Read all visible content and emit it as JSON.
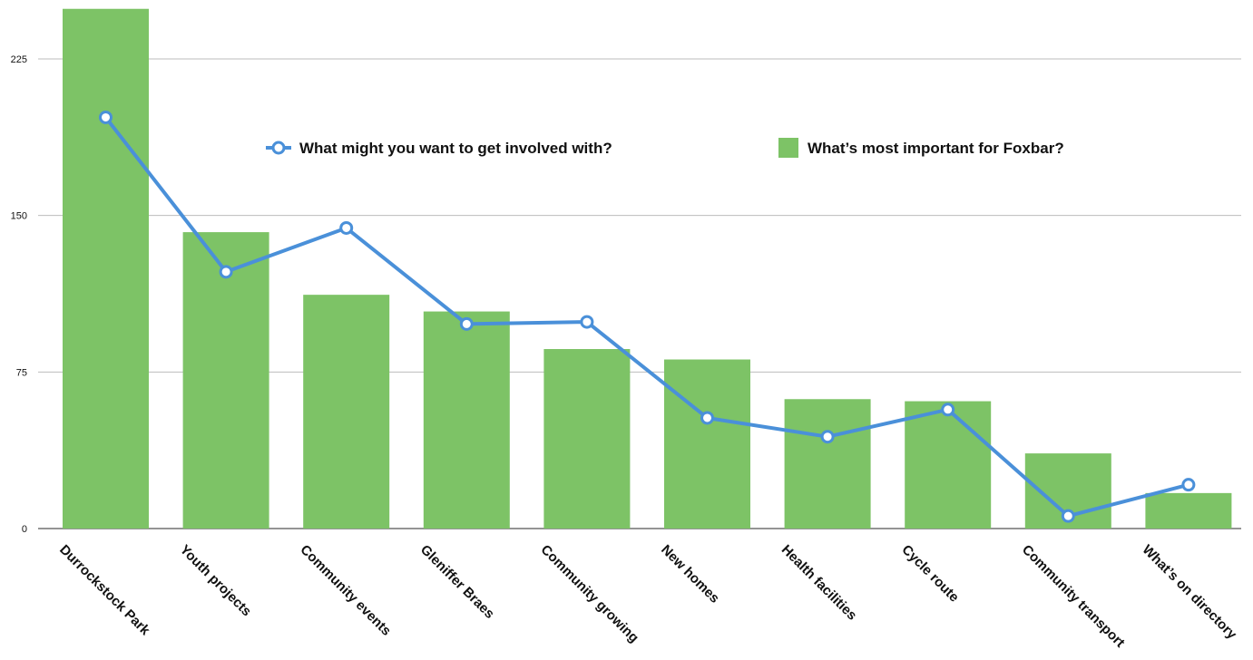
{
  "chart_data": {
    "type": "bar",
    "categories": [
      "Durrockstock Park",
      "Youth projects",
      "Community events",
      "Gleniffer Braes",
      "Community growing",
      "New homes",
      "Health facilities",
      "Cycle route",
      "Community transport",
      "What’s on directory"
    ],
    "series": [
      {
        "name": "What’s most important for Foxbar?",
        "type": "bar",
        "color": "#7dc366",
        "values": [
          249,
          142,
          112,
          104,
          86,
          81,
          62,
          61,
          36,
          17
        ]
      },
      {
        "name": "What might you want to get involved with?",
        "type": "line",
        "color": "#4a90d9",
        "values": [
          197,
          123,
          144,
          98,
          99,
          53,
          44,
          57,
          6,
          21
        ]
      }
    ],
    "y_ticks": [
      0,
      75,
      150,
      225
    ],
    "ylim": [
      0,
      250
    ],
    "grid": true,
    "legend_position": "top-center",
    "title": "",
    "xlabel": "",
    "ylabel": ""
  }
}
